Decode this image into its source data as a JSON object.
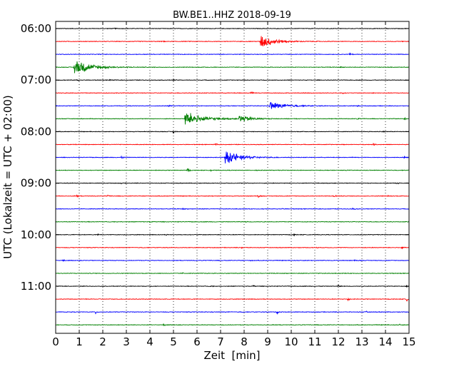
{
  "chart_data": {
    "type": "line",
    "title": "BW.BE1..HHZ 2018-09-19",
    "xlabel": "Zeit  [min]",
    "ylabel": "UTC (Lokalzeit = UTC + 02:00)",
    "xlim": [
      0,
      15
    ],
    "x_ticks": [
      "0",
      "1",
      "2",
      "3",
      "4",
      "5",
      "6",
      "7",
      "8",
      "9",
      "10",
      "11",
      "12",
      "13",
      "14",
      "15"
    ],
    "y_ticks": [
      "06:00",
      "07:00",
      "08:00",
      "09:00",
      "10:00",
      "11:00"
    ],
    "grid": "vertical dotted",
    "trace_colors": [
      "#000000",
      "#ff0000",
      "#0000ff",
      "#008000"
    ],
    "traces": [
      {
        "start": "06:00",
        "events": [
          {
            "t": 0.4,
            "amp": 0.25
          },
          {
            "t": 2.5,
            "amp": 0.15
          }
        ]
      },
      {
        "start": "06:15",
        "events": [
          {
            "t": 8.7,
            "amp": 1.9,
            "dur": 1.2
          },
          {
            "t": 4.6,
            "amp": 0.15
          }
        ]
      },
      {
        "start": "06:30",
        "events": [
          {
            "t": 12.5,
            "amp": 0.3
          },
          {
            "t": 7.7,
            "amp": 0.15
          }
        ]
      },
      {
        "start": "06:45",
        "events": [
          {
            "t": 0.8,
            "amp": 2.5,
            "dur": 1.3
          },
          {
            "t": 12.1,
            "amp": 0.2
          }
        ]
      },
      {
        "start": "07:00",
        "events": [
          {
            "t": 0.9,
            "amp": 0.5
          },
          {
            "t": 2.3,
            "amp": 0.3
          },
          {
            "t": 5.0,
            "amp": 0.15
          }
        ]
      },
      {
        "start": "07:15",
        "events": [
          {
            "t": 8.3,
            "amp": 0.3
          },
          {
            "t": 12.2,
            "amp": 0.15
          }
        ]
      },
      {
        "start": "07:30",
        "events": [
          {
            "t": 9.1,
            "amp": 1.2,
            "dur": 1.3
          },
          {
            "t": 4.8,
            "amp": 0.3
          },
          {
            "t": 12.8,
            "amp": 0.2
          }
        ]
      },
      {
        "start": "07:45",
        "events": [
          {
            "t": 5.5,
            "amp": 2.2,
            "dur": 1.4
          },
          {
            "t": 7.8,
            "amp": 1.1,
            "dur": 1.0
          },
          {
            "t": 12.8,
            "amp": 0.2
          },
          {
            "t": 14.8,
            "amp": 0.3
          }
        ]
      },
      {
        "start": "08:00",
        "events": [
          {
            "t": 5.0,
            "amp": 0.6
          },
          {
            "t": 13.9,
            "amp": 0.2
          }
        ]
      },
      {
        "start": "08:15",
        "events": [
          {
            "t": 6.8,
            "amp": 0.3
          },
          {
            "t": 13.5,
            "amp": 0.3
          }
        ]
      },
      {
        "start": "08:30",
        "events": [
          {
            "t": 7.2,
            "amp": 2.2,
            "dur": 1.2
          },
          {
            "t": 2.8,
            "amp": 0.3
          },
          {
            "t": 14.8,
            "amp": 0.2
          }
        ]
      },
      {
        "start": "08:45",
        "events": [
          {
            "t": 5.6,
            "amp": 0.7
          },
          {
            "t": 6.6,
            "amp": 0.25
          },
          {
            "t": 8.5,
            "amp": 0.2
          }
        ]
      },
      {
        "start": "09:00",
        "events": [
          {
            "t": 14.5,
            "amp": 0.3
          },
          {
            "t": 2.8,
            "amp": 0.15
          }
        ]
      },
      {
        "start": "09:15",
        "events": [
          {
            "t": 11.8,
            "amp": 0.8
          },
          {
            "t": 0.9,
            "amp": 0.3
          },
          {
            "t": 2.2,
            "amp": 0.4
          },
          {
            "t": 8.6,
            "amp": 0.4
          },
          {
            "t": 14.1,
            "amp": 0.2
          }
        ]
      },
      {
        "start": "09:30",
        "events": [
          {
            "t": 12.6,
            "amp": 0.4
          },
          {
            "t": 5.4,
            "amp": 0.2
          },
          {
            "t": 9.6,
            "amp": 0.15
          }
        ]
      },
      {
        "start": "09:45",
        "events": [
          {
            "t": 4.0,
            "amp": 0.2
          },
          {
            "t": 8.1,
            "amp": 0.2
          }
        ]
      },
      {
        "start": "10:00",
        "events": [
          {
            "t": 10.1,
            "amp": 0.3
          },
          {
            "t": 1.8,
            "amp": 0.2
          },
          {
            "t": 4.7,
            "amp": 0.15
          }
        ]
      },
      {
        "start": "10:15",
        "events": [
          {
            "t": 14.7,
            "amp": 0.3
          },
          {
            "t": 7.9,
            "amp": 0.2
          },
          {
            "t": 11.1,
            "amp": 0.15
          }
        ]
      },
      {
        "start": "10:30",
        "events": [
          {
            "t": 0.3,
            "amp": 0.3
          },
          {
            "t": 12.7,
            "amp": 0.2
          },
          {
            "t": 8.3,
            "amp": 0.15
          }
        ]
      },
      {
        "start": "10:45",
        "events": [
          {
            "t": 14.2,
            "amp": 0.2
          },
          {
            "t": 5.4,
            "amp": 0.15
          }
        ]
      },
      {
        "start": "11:00",
        "events": [
          {
            "t": 8.4,
            "amp": 0.3
          },
          {
            "t": 6.6,
            "amp": 0.2
          },
          {
            "t": 12.0,
            "amp": 0.3
          },
          {
            "t": 14.9,
            "amp": 0.3
          }
        ]
      },
      {
        "start": "11:15",
        "events": [
          {
            "t": 12.4,
            "amp": 0.6
          },
          {
            "t": 14.9,
            "amp": 0.6
          }
        ]
      },
      {
        "start": "11:30",
        "events": [
          {
            "t": 1.7,
            "amp": 0.5
          },
          {
            "t": 9.4,
            "amp": 0.6
          },
          {
            "t": 13.2,
            "amp": 0.2
          }
        ]
      },
      {
        "start": "11:45",
        "events": [
          {
            "t": 4.6,
            "amp": 0.4
          },
          {
            "t": 14.6,
            "amp": 0.2
          }
        ]
      }
    ]
  }
}
